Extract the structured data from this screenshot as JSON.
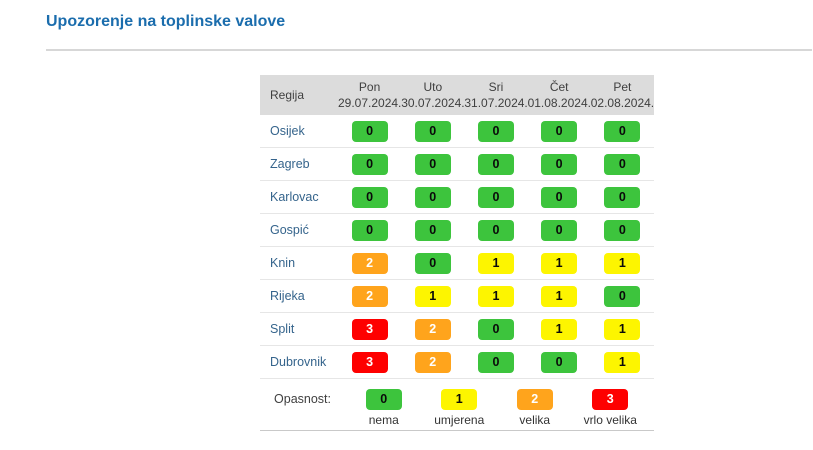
{
  "title": "Upozorenje na toplinske valove",
  "table": {
    "region_header": "Regija",
    "days": [
      {
        "day": "Pon",
        "date": "29.07.2024."
      },
      {
        "day": "Uto",
        "date": "30.07.2024."
      },
      {
        "day": "Sri",
        "date": "31.07.2024."
      },
      {
        "day": "Čet",
        "date": "01.08.2024."
      },
      {
        "day": "Pet",
        "date": "02.08.2024."
      }
    ],
    "rows": [
      {
        "region": "Osijek",
        "values": [
          0,
          0,
          0,
          0,
          0
        ]
      },
      {
        "region": "Zagreb",
        "values": [
          0,
          0,
          0,
          0,
          0
        ]
      },
      {
        "region": "Karlovac",
        "values": [
          0,
          0,
          0,
          0,
          0
        ]
      },
      {
        "region": "Gospić",
        "values": [
          0,
          0,
          0,
          0,
          0
        ]
      },
      {
        "region": "Knin",
        "values": [
          2,
          0,
          1,
          1,
          1
        ]
      },
      {
        "region": "Rijeka",
        "values": [
          2,
          1,
          1,
          1,
          0
        ]
      },
      {
        "region": "Split",
        "values": [
          3,
          2,
          0,
          1,
          1
        ]
      },
      {
        "region": "Dubrovnik",
        "values": [
          3,
          2,
          0,
          0,
          1
        ]
      }
    ]
  },
  "legend": {
    "label": "Opasnost:",
    "items": [
      {
        "value": 0,
        "label": "nema"
      },
      {
        "value": 1,
        "label": "umjerena"
      },
      {
        "value": 2,
        "label": "velika"
      },
      {
        "value": 3,
        "label": "vrlo velika"
      }
    ]
  },
  "colors": {
    "level0": "#3dc43d",
    "level1": "#fdf500",
    "level2": "#ffa41c",
    "level3": "#fe0000",
    "title": "#1b6dad",
    "region": "#35648c",
    "header_bg": "#dcdcdc"
  }
}
